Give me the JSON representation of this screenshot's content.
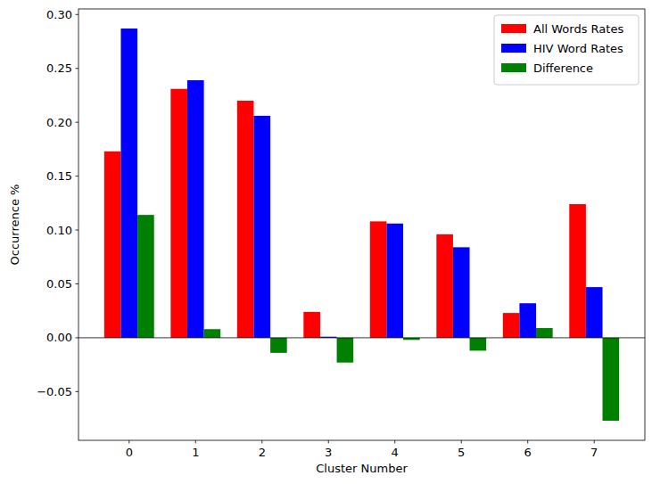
{
  "chart_data": {
    "type": "bar",
    "x_label": "Cluster Number",
    "y_label": "Occurrence %",
    "x": [
      0,
      1,
      2,
      3,
      4,
      5,
      6,
      7
    ],
    "series": [
      {
        "name": "All Words Rates",
        "color": "#ff0000",
        "values": [
          0.173,
          0.231,
          0.22,
          0.024,
          0.108,
          0.096,
          0.023,
          0.124
        ]
      },
      {
        "name": "HIV Word Rates",
        "color": "#0000ff",
        "values": [
          0.287,
          0.239,
          0.206,
          0.001,
          0.106,
          0.084,
          0.032,
          0.047
        ]
      },
      {
        "name": "Difference",
        "color": "#008000",
        "values": [
          0.114,
          0.008,
          -0.014,
          -0.023,
          -0.002,
          -0.012,
          0.009,
          -0.077
        ]
      }
    ],
    "xlim": [
      -0.7625,
      7.7625
    ],
    "xticks": [
      0,
      1,
      2,
      3,
      4,
      5,
      6,
      7
    ],
    "ylim": [
      -0.0952,
      0.3052
    ],
    "yticks": [
      {
        "value": -0.05,
        "label": "−0.05"
      },
      {
        "value": 0,
        "label": "0.00"
      },
      {
        "value": 0.05,
        "label": "0.05"
      },
      {
        "value": 0.1,
        "label": "0.10"
      },
      {
        "value": 0.15,
        "label": "0.15"
      },
      {
        "value": 0.2,
        "label": "0.20"
      },
      {
        "value": 0.25,
        "label": "0.25"
      },
      {
        "value": 0.3,
        "label": "0.30"
      }
    ],
    "legend": "upper right",
    "grid": false
  }
}
